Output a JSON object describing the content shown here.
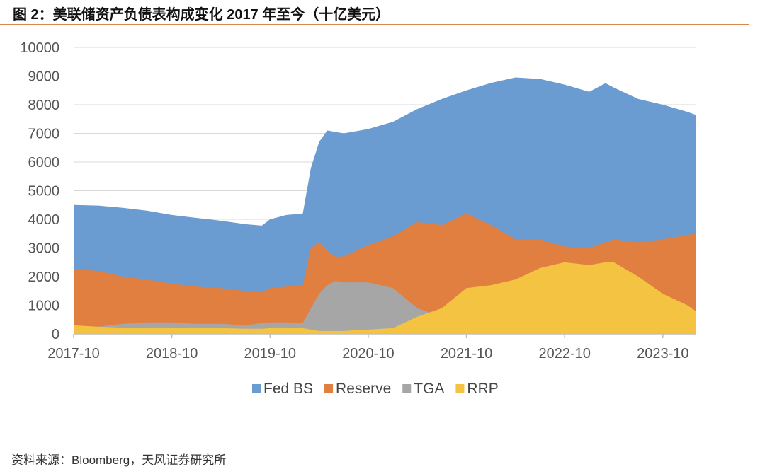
{
  "header": {
    "title": "图 2：美联储资产负债表构成变化 2017 年至今（十亿美元）"
  },
  "footer": {
    "source": "资料来源：Bloomberg，天风证券研究所"
  },
  "chart_data": {
    "type": "area",
    "title": "图 2：美联储资产负债表构成变化 2017 年至今（十亿美元）",
    "xlabel": "",
    "ylabel": "",
    "ylim": [
      0,
      10000
    ],
    "yticks": [
      0,
      1000,
      2000,
      3000,
      4000,
      5000,
      6000,
      7000,
      8000,
      9000,
      10000
    ],
    "xlim": [
      "2017-10",
      "2024-02"
    ],
    "xticks": [
      "2017-10",
      "2018-10",
      "2019-10",
      "2020-10",
      "2021-10",
      "2022-10",
      "2023-10"
    ],
    "grid": true,
    "legend": "bottom",
    "overlay": true,
    "x": [
      "2017-10",
      "2018-01",
      "2018-04",
      "2018-07",
      "2018-10",
      "2019-01",
      "2019-04",
      "2019-07",
      "2019-09",
      "2019-10",
      "2019-12",
      "2020-02",
      "2020-03",
      "2020-04",
      "2020-05",
      "2020-06",
      "2020-07",
      "2020-10",
      "2021-01",
      "2021-04",
      "2021-07",
      "2021-10",
      "2022-01",
      "2022-04",
      "2022-07",
      "2022-10",
      "2023-01",
      "2023-03",
      "2023-04",
      "2023-07",
      "2023-10",
      "2024-01",
      "2024-02"
    ],
    "series": [
      {
        "name": "Fed BS",
        "color": "#6a9bd1",
        "values": [
          4500,
          4480,
          4400,
          4300,
          4150,
          4050,
          3950,
          3830,
          3780,
          4000,
          4150,
          4200,
          5800,
          6700,
          7100,
          7050,
          7000,
          7150,
          7400,
          7850,
          8200,
          8500,
          8760,
          8950,
          8900,
          8700,
          8450,
          8750,
          8600,
          8200,
          8000,
          7750,
          7650
        ]
      },
      {
        "name": "Reserve",
        "color": "#e17f40",
        "values": [
          2250,
          2200,
          2000,
          1900,
          1750,
          1650,
          1600,
          1500,
          1450,
          1600,
          1650,
          1700,
          3000,
          3200,
          2900,
          2700,
          2700,
          3100,
          3400,
          3900,
          3800,
          4200,
          3800,
          3300,
          3300,
          3050,
          3000,
          3200,
          3300,
          3200,
          3300,
          3450,
          3500
        ]
      },
      {
        "name": "TGA",
        "color": "#a6a6a6",
        "values": [
          200,
          250,
          350,
          400,
          400,
          350,
          350,
          300,
          380,
          400,
          400,
          380,
          900,
          1400,
          1700,
          1850,
          1800,
          1800,
          1600,
          900,
          600,
          300,
          400,
          900,
          700,
          650,
          500,
          400,
          300,
          500,
          700,
          850,
          800
        ]
      },
      {
        "name": "RRP",
        "color": "#f4c342",
        "values": [
          300,
          250,
          220,
          200,
          200,
          200,
          200,
          180,
          180,
          200,
          200,
          200,
          150,
          100,
          100,
          100,
          100,
          150,
          200,
          600,
          900,
          1600,
          1700,
          1900,
          2300,
          2500,
          2400,
          2500,
          2500,
          2000,
          1400,
          1000,
          800
        ]
      }
    ]
  }
}
